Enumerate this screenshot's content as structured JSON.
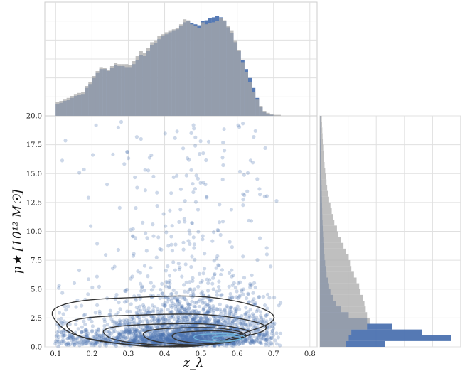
{
  "chart_data": {
    "type": "scatter",
    "xlabel": "z_λ",
    "ylabel": "μ★ [10¹² M☉]",
    "xlim": [
      0.07,
      0.82
    ],
    "ylim": [
      0,
      20
    ],
    "x_ticks": [
      "0.1",
      "0.2",
      "0.3",
      "0.4",
      "0.5",
      "0.6",
      "0.7",
      "0.8"
    ],
    "y_ticks": [
      "0.0",
      "2.5",
      "5.0",
      "7.5",
      "10.0",
      "12.5",
      "15.0",
      "17.5",
      "20.0"
    ],
    "x_tick_values": [
      0.1,
      0.2,
      0.3,
      0.4,
      0.5,
      0.6,
      0.7,
      0.8
    ],
    "y_tick_values": [
      0,
      2.5,
      5,
      7.5,
      10,
      12.5,
      15,
      17.5,
      20
    ],
    "grid": true,
    "colors": {
      "blue": "#4c72b0",
      "gray": "#a9a9a9",
      "contour_dark": "#333333",
      "contour_light": "#6fb0d8"
    },
    "marginal_x": {
      "bins_x": [
        0.1,
        0.11,
        0.12,
        0.13,
        0.14,
        0.15,
        0.16,
        0.17,
        0.18,
        0.19,
        0.2,
        0.21,
        0.22,
        0.23,
        0.24,
        0.25,
        0.26,
        0.27,
        0.28,
        0.29,
        0.3,
        0.31,
        0.32,
        0.33,
        0.34,
        0.35,
        0.36,
        0.37,
        0.38,
        0.39,
        0.4,
        0.41,
        0.42,
        0.43,
        0.44,
        0.45,
        0.46,
        0.47,
        0.48,
        0.49,
        0.5,
        0.51,
        0.52,
        0.53,
        0.54,
        0.55,
        0.56,
        0.57,
        0.58,
        0.59,
        0.6,
        0.61,
        0.62,
        0.63,
        0.64,
        0.65,
        0.66,
        0.67,
        0.68,
        0.69,
        0.7,
        0.71,
        0.72
      ],
      "gray": [
        0.14,
        0.15,
        0.17,
        0.18,
        0.2,
        0.22,
        0.23,
        0.24,
        0.3,
        0.34,
        0.4,
        0.45,
        0.49,
        0.48,
        0.46,
        0.5,
        0.53,
        0.52,
        0.52,
        0.52,
        0.51,
        0.55,
        0.6,
        0.65,
        0.63,
        0.68,
        0.74,
        0.76,
        0.8,
        0.82,
        0.84,
        0.86,
        0.87,
        0.88,
        0.92,
        0.97,
        0.96,
        0.92,
        0.9,
        0.88,
        0.94,
        0.92,
        0.93,
        0.94,
        0.95,
        0.98,
        0.96,
        0.9,
        0.86,
        0.76,
        0.66,
        0.54,
        0.44,
        0.34,
        0.24,
        0.17,
        0.1,
        0.05,
        0.03,
        0.02,
        0.01,
        0.01,
        0.0
      ],
      "blue": [
        0.12,
        0.13,
        0.15,
        0.16,
        0.18,
        0.2,
        0.21,
        0.22,
        0.28,
        0.32,
        0.38,
        0.43,
        0.47,
        0.47,
        0.45,
        0.48,
        0.51,
        0.5,
        0.5,
        0.49,
        0.49,
        0.52,
        0.56,
        0.61,
        0.6,
        0.65,
        0.71,
        0.73,
        0.77,
        0.8,
        0.82,
        0.84,
        0.86,
        0.87,
        0.9,
        0.94,
        0.95,
        0.93,
        0.92,
        0.91,
        0.95,
        0.96,
        0.98,
        0.99,
        1.0,
        0.99,
        0.95,
        0.89,
        0.83,
        0.74,
        0.65,
        0.56,
        0.47,
        0.38,
        0.28,
        0.18,
        0.09,
        0.04,
        0.02,
        0.01,
        0.0,
        0.0,
        0.0
      ]
    },
    "marginal_y": {
      "bins_y": [
        0.0,
        0.5,
        1.0,
        1.5,
        2.0,
        2.5,
        3.0,
        3.5,
        4.0,
        4.5,
        5.0,
        5.5,
        6.0,
        6.5,
        7.0,
        7.5,
        8.0,
        8.5,
        9.0,
        9.5,
        10.0,
        10.5,
        11.0,
        11.5,
        12.0,
        12.5,
        13.0,
        13.5,
        14.0,
        14.5,
        15.0,
        15.5,
        16.0,
        16.5,
        17.0,
        17.5,
        18.0,
        18.5,
        19.0,
        19.5
      ],
      "blue": [
        0.5,
        1.0,
        0.78,
        0.55,
        0.36,
        0.22,
        0.16,
        0.12,
        0.1,
        0.08,
        0.07,
        0.06,
        0.05,
        0.045,
        0.04,
        0.035,
        0.03,
        0.028,
        0.026,
        0.024,
        0.022,
        0.02,
        0.018,
        0.017,
        0.016,
        0.015,
        0.014,
        0.013,
        0.012,
        0.011,
        0.01,
        0.009,
        0.008,
        0.007,
        0.006,
        0.005,
        0.004,
        0.004,
        0.003,
        0.003
      ],
      "gray": [
        0.2,
        0.22,
        0.24,
        0.36,
        0.38,
        0.36,
        0.35,
        0.34,
        0.33,
        0.31,
        0.3,
        0.28,
        0.26,
        0.24,
        0.23,
        0.22,
        0.2,
        0.18,
        0.16,
        0.14,
        0.13,
        0.11,
        0.1,
        0.09,
        0.08,
        0.07,
        0.06,
        0.055,
        0.05,
        0.045,
        0.04,
        0.035,
        0.03,
        0.028,
        0.025,
        0.022,
        0.02,
        0.018,
        0.016,
        0.014
      ]
    }
  }
}
